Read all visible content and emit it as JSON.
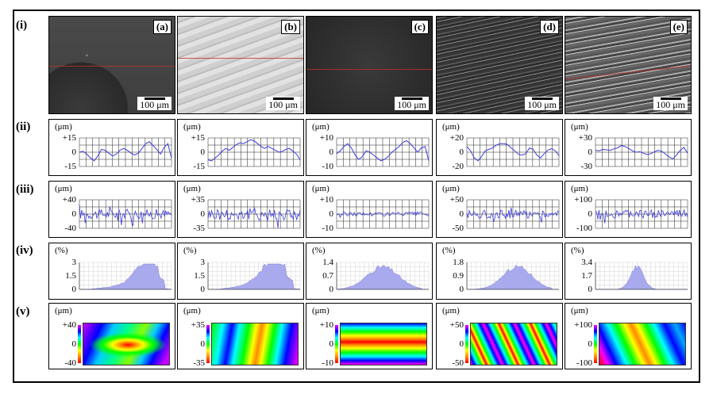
{
  "row_labels": [
    "(i)",
    "(ii)",
    "(iii)",
    "(iv)",
    "(v)"
  ],
  "panels": [
    {
      "letter": "(a)",
      "scale": "100 μm",
      "ii": {
        "unit": "(μm)",
        "top": "+15",
        "mid": "0",
        "bot": "-15"
      },
      "iii": {
        "unit": "(μm)",
        "top": "+40",
        "mid": "0",
        "bot": "-40"
      },
      "iv": {
        "unit": "(%)",
        "top": "3",
        "mid": "1.5",
        "bot": "0"
      },
      "v": {
        "unit": "(μm)",
        "top": "+40",
        "mid": "0",
        "bot": "-40"
      }
    },
    {
      "letter": "(b)",
      "scale": "100 μm",
      "ii": {
        "unit": "(μm)",
        "top": "+15",
        "mid": "0",
        "bot": "-15"
      },
      "iii": {
        "unit": "(μm)",
        "top": "+35",
        "mid": "0",
        "bot": "-35"
      },
      "iv": {
        "unit": "(%)",
        "top": "3",
        "mid": "1.5",
        "bot": "0"
      },
      "v": {
        "unit": "(μm)",
        "top": "+35",
        "mid": "0",
        "bot": "-35"
      }
    },
    {
      "letter": "(c)",
      "scale": "100 μm",
      "ii": {
        "unit": "(μm)",
        "top": "+10",
        "mid": "0",
        "bot": "-10"
      },
      "iii": {
        "unit": "(μm)",
        "top": "+10",
        "mid": "0",
        "bot": "-10"
      },
      "iv": {
        "unit": "(%)",
        "top": "1.4",
        "mid": "0.7",
        "bot": "0"
      },
      "v": {
        "unit": "(μm)",
        "top": "+10",
        "mid": "0",
        "bot": "-10"
      }
    },
    {
      "letter": "(d)",
      "scale": "100 μm",
      "ii": {
        "unit": "(μm)",
        "top": "+20",
        "mid": "0",
        "bot": "-20"
      },
      "iii": {
        "unit": "(μm)",
        "top": "+50",
        "mid": "0",
        "bot": "-50"
      },
      "iv": {
        "unit": "(%)",
        "top": "1.8",
        "mid": "0.9",
        "bot": "0"
      },
      "v": {
        "unit": "(μm)",
        "top": "+50",
        "mid": "0",
        "bot": "-50"
      }
    },
    {
      "letter": "(e)",
      "scale": "100 μm",
      "ii": {
        "unit": "(μm)",
        "top": "+30",
        "mid": "0",
        "bot": "-30"
      },
      "iii": {
        "unit": "(μm)",
        "top": "+100",
        "mid": "0",
        "bot": "-100"
      },
      "iv": {
        "unit": "(%)",
        "top": "3.4",
        "mid": "1.7",
        "bot": "0"
      },
      "v": {
        "unit": "(μm)",
        "top": "+100",
        "mid": "0",
        "bot": "-100"
      }
    }
  ],
  "colors": {
    "trace": "#3a3adc",
    "hist_fill": "#a9a9ee",
    "grid": "#222222",
    "mark_red": "#c0302a"
  }
}
